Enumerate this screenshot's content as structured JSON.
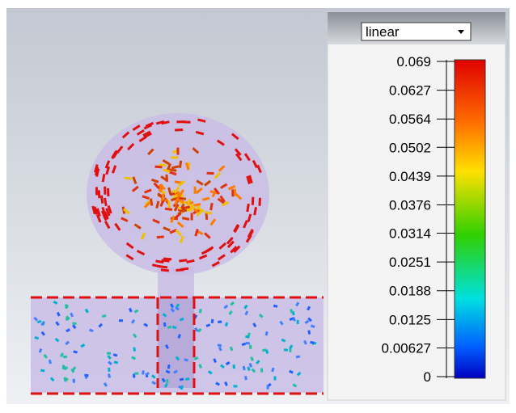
{
  "legend": {
    "scale": "linear",
    "ticks": [
      0.069,
      0.0627,
      0.0564,
      0.0502,
      0.0439,
      0.0376,
      0.0314,
      0.0251,
      0.0188,
      0.0125,
      0.00627,
      0
    ]
  }
}
